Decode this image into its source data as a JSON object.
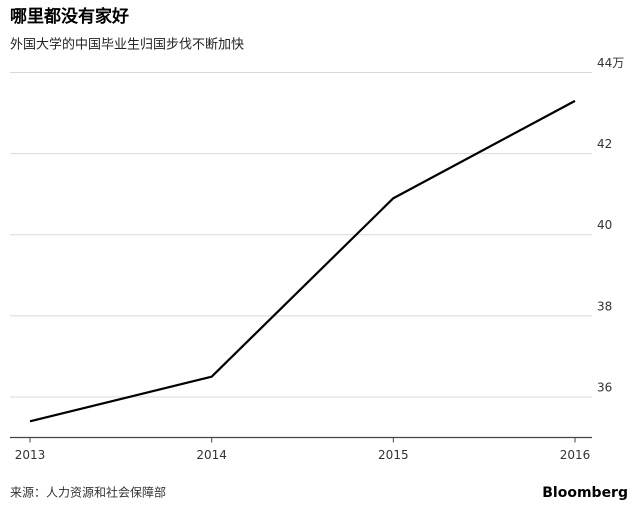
{
  "chart_data": {
    "type": "line",
    "title": "哪里都没有家好",
    "subtitle": "外国大学的中国毕业生归国步伐不断加快",
    "source": "来源：人力资源和社会保障部",
    "brand": "Bloomberg",
    "x": [
      2013,
      2014,
      2015,
      2016
    ],
    "xlim": [
      2013,
      2016
    ],
    "xticks": [
      2013,
      2014,
      2015,
      2016
    ],
    "series": [
      {
        "values": [
          35.4,
          36.5,
          40.9,
          43.3
        ],
        "color": "#000000"
      }
    ],
    "ylim": [
      35,
      44
    ],
    "yticks": [
      36,
      38,
      40,
      42,
      {
        "value": 44,
        "label": "44万"
      }
    ],
    "grid": true
  }
}
